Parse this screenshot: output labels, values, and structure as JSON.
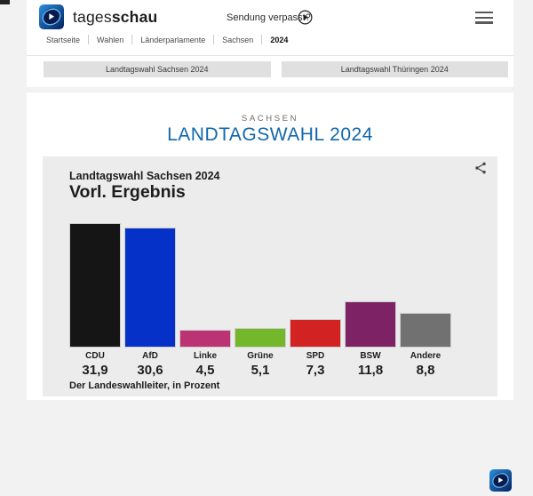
{
  "header": {
    "brand_prefix": "tages",
    "brand_suffix": "schau",
    "broadcast_link": "Sendung verpasst?"
  },
  "breadcrumb": {
    "items": [
      "Startseite",
      "Wahlen",
      "Länderparlamente",
      "Sachsen",
      "2024"
    ]
  },
  "nav_buttons": [
    "Landtagswahl Sachsen 2024",
    "Landtagswahl Thüringen 2024"
  ],
  "page": {
    "region": "SACHSEN",
    "title": "LANDTAGSWAHL 2024"
  },
  "chart_card": {
    "subtitle": "Landtagswahl Sachsen 2024",
    "title": "Vorl. Ergebnis",
    "source": "Der Landeswahlleiter, in Prozent"
  },
  "chart_data": {
    "type": "bar",
    "title": "Vorl. Ergebnis",
    "subtitle": "Landtagswahl Sachsen 2024",
    "categories": [
      "CDU",
      "AfD",
      "Linke",
      "Grüne",
      "SPD",
      "BSW",
      "Andere"
    ],
    "values": [
      31.9,
      30.6,
      4.5,
      5.1,
      7.3,
      11.8,
      8.8
    ],
    "value_labels": [
      "31,9",
      "30,6",
      "4,5",
      "5,1",
      "7,3",
      "11,8",
      "8,8"
    ],
    "colors": [
      "#151515",
      "#0531c9",
      "#bc3373",
      "#75b72a",
      "#d32222",
      "#7d2365",
      "#717171"
    ],
    "unit": "Prozent",
    "source": "Der Landeswahlleiter, in Prozent",
    "ylim": [
      0,
      35
    ],
    "grid": false,
    "legend": false
  },
  "colors": {
    "accent_blue": "#1168ab",
    "card_bg": "#ececec",
    "page_bg": "#f2f2f2"
  }
}
